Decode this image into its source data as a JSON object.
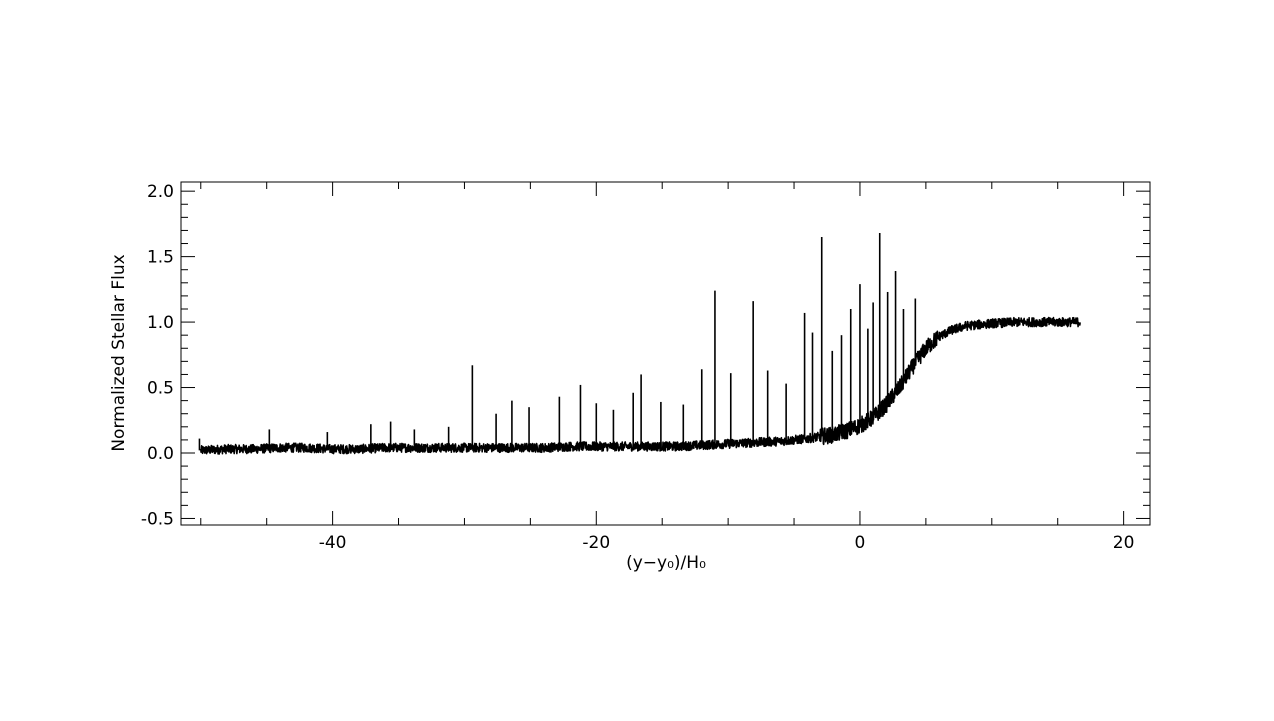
{
  "chart_data": {
    "type": "line",
    "title": "",
    "xlabel": "(y−y₀)/H₀",
    "ylabel": "Normalized Stellar Flux",
    "xlim": [
      -51.5,
      22
    ],
    "ylim": [
      -0.55,
      2.07
    ],
    "x_ticks": [
      -40,
      -20,
      0,
      20
    ],
    "x_tick_labels": [
      "-40",
      "-20",
      "0",
      "20"
    ],
    "y_ticks": [
      -0.5,
      0.0,
      0.5,
      1.0,
      1.5,
      2.0
    ],
    "y_tick_labels": [
      "-0.5",
      "0.0",
      "0.5",
      "1.0",
      "1.5",
      "2.0"
    ],
    "x_minor_step": 5,
    "y_minor_step": 0.1,
    "grid": false,
    "legend": "none",
    "line_color": "#000000",
    "series": [
      {
        "x": [
          -50.0,
          -48.0,
          -46.0,
          -44.0,
          -42.0,
          -40.0,
          -38.0,
          -36.0,
          -34.0,
          -32.0,
          -30.0,
          -28.0,
          -26.0,
          -24.0,
          -22.0,
          -20.0,
          -18.0,
          -16.0,
          -14.0,
          -12.0,
          -10.0,
          -8.0,
          -6.0,
          -4.0,
          -2.0,
          -1.0,
          0.0,
          1.0,
          2.0,
          3.0,
          4.0,
          5.0,
          6.0,
          7.0,
          8.0,
          10.0,
          12.0,
          14.0,
          16.7
        ],
        "values": [
          0.02,
          0.03,
          0.03,
          0.04,
          0.04,
          0.03,
          0.03,
          0.04,
          0.04,
          0.04,
          0.04,
          0.04,
          0.04,
          0.04,
          0.05,
          0.05,
          0.05,
          0.05,
          0.05,
          0.06,
          0.07,
          0.08,
          0.09,
          0.11,
          0.14,
          0.17,
          0.21,
          0.27,
          0.37,
          0.5,
          0.66,
          0.8,
          0.89,
          0.94,
          0.97,
          0.99,
          1.0,
          1.0,
          1.0
        ]
      }
    ],
    "noise_amplitude": 0.035,
    "spikes": [
      {
        "x": -50.1,
        "y": 0.11
      },
      {
        "x": -44.8,
        "y": 0.18
      },
      {
        "x": -40.4,
        "y": 0.16
      },
      {
        "x": -37.1,
        "y": 0.22
      },
      {
        "x": -35.6,
        "y": 0.24
      },
      {
        "x": -33.8,
        "y": 0.18
      },
      {
        "x": -31.2,
        "y": 0.2
      },
      {
        "x": -29.4,
        "y": 0.67
      },
      {
        "x": -27.6,
        "y": 0.3
      },
      {
        "x": -26.4,
        "y": 0.4
      },
      {
        "x": -25.1,
        "y": 0.35
      },
      {
        "x": -22.8,
        "y": 0.43
      },
      {
        "x": -21.2,
        "y": 0.52
      },
      {
        "x": -20.0,
        "y": 0.38
      },
      {
        "x": -18.7,
        "y": 0.33
      },
      {
        "x": -17.2,
        "y": 0.46
      },
      {
        "x": -16.6,
        "y": 0.6
      },
      {
        "x": -15.1,
        "y": 0.39
      },
      {
        "x": -13.4,
        "y": 0.37
      },
      {
        "x": -12.0,
        "y": 0.64
      },
      {
        "x": -11.0,
        "y": 1.24
      },
      {
        "x": -9.8,
        "y": 0.61
      },
      {
        "x": -8.1,
        "y": 1.16
      },
      {
        "x": -7.0,
        "y": 0.63
      },
      {
        "x": -5.6,
        "y": 0.53
      },
      {
        "x": -4.2,
        "y": 1.07
      },
      {
        "x": -3.6,
        "y": 0.92
      },
      {
        "x": -2.9,
        "y": 1.65
      },
      {
        "x": -2.1,
        "y": 0.78
      },
      {
        "x": -1.4,
        "y": 0.9
      },
      {
        "x": -0.7,
        "y": 1.1
      },
      {
        "x": 0.0,
        "y": 1.29
      },
      {
        "x": 0.6,
        "y": 0.95
      },
      {
        "x": 1.0,
        "y": 1.15
      },
      {
        "x": 1.5,
        "y": 1.68
      },
      {
        "x": 2.1,
        "y": 1.23
      },
      {
        "x": 2.7,
        "y": 1.39
      },
      {
        "x": 3.3,
        "y": 1.1
      },
      {
        "x": 4.2,
        "y": 1.18
      }
    ]
  }
}
